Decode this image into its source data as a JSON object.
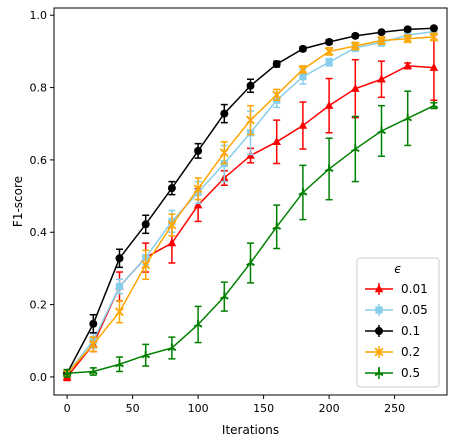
{
  "chart_data": {
    "type": "line",
    "xlabel": "Iterations",
    "ylabel": "F1-score",
    "xlim": [
      -10,
      290
    ],
    "ylim": [
      -0.05,
      1.02
    ],
    "xticks": [
      0,
      50,
      100,
      150,
      200,
      250
    ],
    "xtick_labels": [
      "0",
      "50",
      "100",
      "150",
      "200",
      "250"
    ],
    "yticks": [
      0.0,
      0.2,
      0.4,
      0.6,
      0.8,
      1.0
    ],
    "ytick_labels": [
      "0.0",
      "0.2",
      "0.4",
      "0.6",
      "0.8",
      "1.0"
    ],
    "grid": false,
    "legend": {
      "title": "ϵ",
      "placement": "lower-right"
    },
    "x": [
      0,
      20,
      40,
      60,
      80,
      100,
      120,
      140,
      160,
      180,
      200,
      220,
      240,
      260,
      280
    ],
    "series": [
      {
        "name": "0.01",
        "color": "#ff0000",
        "marker": "triangle",
        "values": [
          0.0,
          0.09,
          0.25,
          0.33,
          0.37,
          0.475,
          0.55,
          0.612,
          0.65,
          0.695,
          0.75,
          0.797,
          0.823,
          0.86,
          0.855
        ],
        "errors": [
          0.01,
          0.02,
          0.04,
          0.04,
          0.055,
          0.045,
          0.02,
          0.02,
          0.06,
          0.065,
          0.075,
          0.08,
          0.05,
          0.008,
          0.09
        ]
      },
      {
        "name": "0.05",
        "color": "#87ceeb",
        "marker": "square",
        "values": [
          0.01,
          0.1,
          0.25,
          0.33,
          0.43,
          0.51,
          0.59,
          0.675,
          0.765,
          0.83,
          0.87,
          0.91,
          0.925,
          0.945,
          0.955
        ],
        "errors": [
          0.01,
          0.02,
          0.02,
          0.02,
          0.03,
          0.03,
          0.05,
          0.06,
          0.02,
          0.02,
          0.01,
          0.01,
          0.01,
          0.01,
          0.01
        ]
      },
      {
        "name": "0.1",
        "color": "#000000",
        "marker": "circle",
        "values": [
          0.01,
          0.147,
          0.328,
          0.422,
          0.522,
          0.625,
          0.728,
          0.805,
          0.865,
          0.907,
          0.926,
          0.943,
          0.953,
          0.961,
          0.964
        ],
        "errors": [
          0.01,
          0.025,
          0.025,
          0.025,
          0.018,
          0.02,
          0.025,
          0.018,
          0.008,
          0.006,
          0.006,
          0.005,
          0.004,
          0.005,
          0.004
        ]
      },
      {
        "name": "0.2",
        "color": "#ffa500",
        "marker": "x",
        "values": [
          0.01,
          0.09,
          0.18,
          0.31,
          0.42,
          0.52,
          0.62,
          0.71,
          0.78,
          0.85,
          0.9,
          0.915,
          0.93,
          0.935,
          0.94
        ],
        "errors": [
          0.01,
          0.02,
          0.03,
          0.04,
          0.03,
          0.03,
          0.03,
          0.04,
          0.015,
          0.01,
          0.01,
          0.01,
          0.01,
          0.01,
          0.01
        ]
      },
      {
        "name": "0.5",
        "color": "#008000",
        "marker": "star",
        "values": [
          0.01,
          0.015,
          0.035,
          0.06,
          0.08,
          0.145,
          0.222,
          0.315,
          0.415,
          0.51,
          0.575,
          0.63,
          0.68,
          0.715,
          0.75
        ],
        "errors": [
          0.01,
          0.01,
          0.02,
          0.03,
          0.03,
          0.05,
          0.04,
          0.055,
          0.06,
          0.075,
          0.085,
          0.09,
          0.07,
          0.075,
          0.008
        ]
      }
    ]
  }
}
